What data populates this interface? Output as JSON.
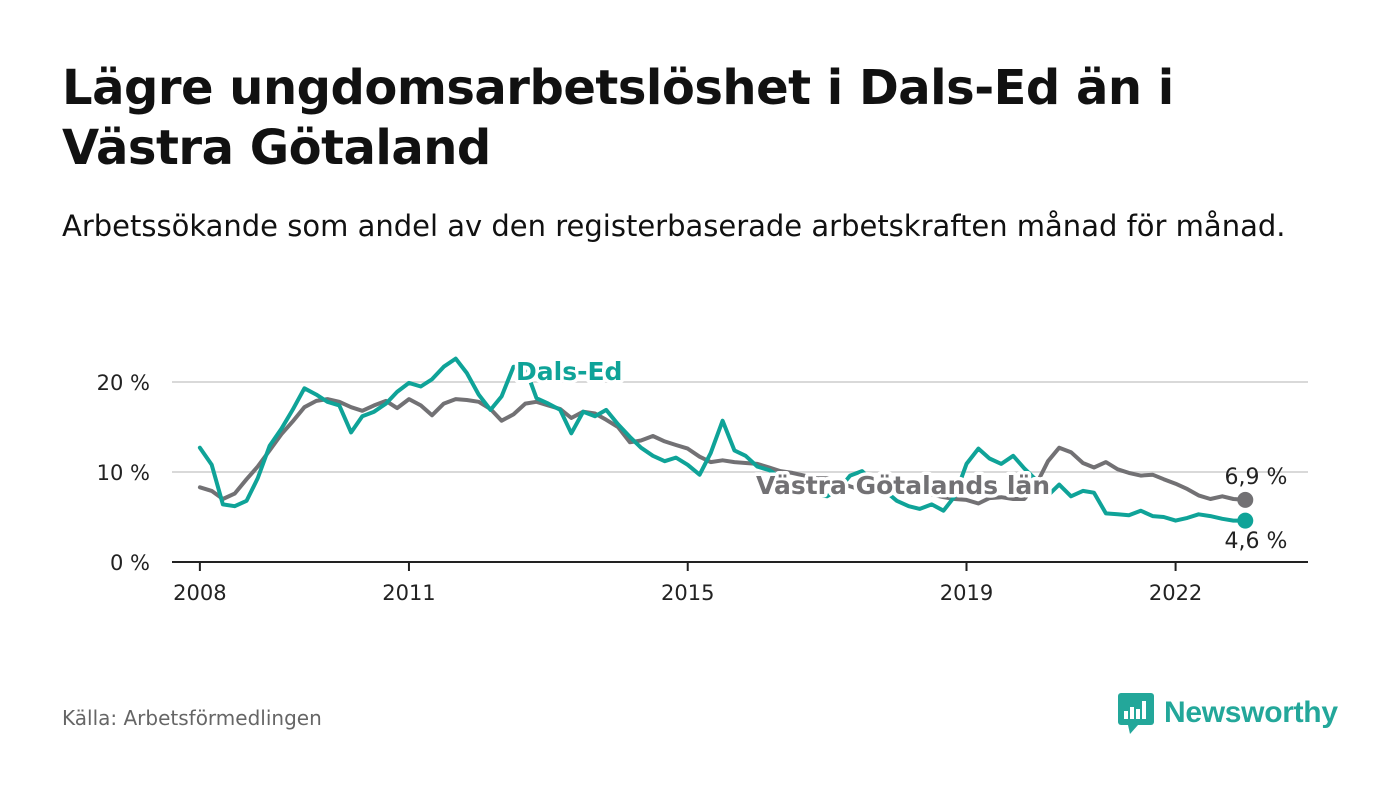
{
  "title": "Lägre ungdomsarbetslöshet i Dals-Ed än i Västra Götaland",
  "subtitle": "Arbetssökande som andel av den registerbaserade arbetskraften månad för månad.",
  "source": "Källa: Arbetsförmedlingen",
  "brand": {
    "name": "Newsworthy",
    "icon": "newsworthy-logo-icon",
    "color": "#23a79a"
  },
  "chart_data": {
    "type": "line",
    "title": "Lägre ungdomsarbetslöshet i Dals-Ed än i Västra Götaland",
    "xlabel": "",
    "ylabel": "",
    "ylim": [
      0,
      20
    ],
    "xlim": [
      2007.6,
      2023.9
    ],
    "yticks": [
      {
        "value": 0,
        "label": "0 %"
      },
      {
        "value": 10,
        "label": "10 %"
      },
      {
        "value": 20,
        "label": "20 %"
      }
    ],
    "xticks": [
      {
        "value": 2008,
        "label": "2008"
      },
      {
        "value": 2011,
        "label": "2011"
      },
      {
        "value": 2015,
        "label": "2015"
      },
      {
        "value": 2019,
        "label": "2019"
      },
      {
        "value": 2022,
        "label": "2022"
      }
    ],
    "grid": true,
    "series": [
      {
        "name": "Västra Götalands län",
        "color": "#727174",
        "end_label": "6,9 %",
        "x": [
          2008.0,
          2008.17,
          2008.33,
          2008.5,
          2008.67,
          2008.83,
          2009.0,
          2009.17,
          2009.33,
          2009.5,
          2009.67,
          2009.83,
          2010.0,
          2010.17,
          2010.33,
          2010.5,
          2010.67,
          2010.83,
          2011.0,
          2011.17,
          2011.33,
          2011.5,
          2011.67,
          2011.83,
          2012.0,
          2012.17,
          2012.33,
          2012.5,
          2012.67,
          2012.83,
          2013.0,
          2013.17,
          2013.33,
          2013.5,
          2013.67,
          2013.83,
          2014.0,
          2014.17,
          2014.33,
          2014.5,
          2014.67,
          2014.83,
          2015.0,
          2015.17,
          2015.33,
          2015.5,
          2015.67,
          2015.83,
          2016.0,
          2016.17,
          2016.33,
          2016.5,
          2016.67,
          2016.83,
          2017.0,
          2017.17,
          2017.33,
          2017.5,
          2017.67,
          2017.83,
          2018.0,
          2018.17,
          2018.33,
          2018.5,
          2018.67,
          2018.83,
          2019.0,
          2019.17,
          2019.33,
          2019.5,
          2019.67,
          2019.83,
          2020.0,
          2020.17,
          2020.33,
          2020.5,
          2020.67,
          2020.83,
          2021.0,
          2021.17,
          2021.33,
          2021.5,
          2021.67,
          2021.83,
          2022.0,
          2022.17,
          2022.33,
          2022.5,
          2022.67,
          2022.83,
          2023.0
        ],
        "values": [
          8.3,
          7.9,
          7.0,
          7.6,
          9.2,
          10.6,
          12.4,
          14.2,
          15.6,
          17.2,
          17.9,
          18.1,
          17.8,
          17.2,
          16.8,
          17.4,
          17.9,
          17.1,
          18.1,
          17.4,
          16.3,
          17.6,
          18.1,
          18.0,
          17.8,
          17.0,
          15.7,
          16.4,
          17.6,
          17.8,
          17.4,
          17.0,
          16.0,
          16.7,
          16.5,
          15.8,
          15.0,
          13.3,
          13.5,
          14.0,
          13.4,
          13.0,
          12.6,
          11.7,
          11.1,
          11.3,
          11.1,
          11.0,
          10.9,
          10.5,
          10.1,
          9.9,
          9.6,
          9.3,
          9.3,
          8.8,
          8.4,
          8.0,
          8.1,
          7.9,
          7.7,
          7.6,
          7.5,
          7.5,
          7.2,
          7.0,
          6.9,
          6.5,
          7.1,
          7.2,
          7.0,
          7.0,
          8.6,
          11.2,
          12.7,
          12.2,
          11.0,
          10.5,
          11.1,
          10.3,
          9.9,
          9.6,
          9.7,
          9.2,
          8.7,
          8.1,
          7.4,
          7.0,
          7.3,
          7.0,
          6.9
        ]
      },
      {
        "name": "Dals-Ed",
        "color": "#0fa398",
        "end_label": "4,6 %",
        "x": [
          2008.0,
          2008.17,
          2008.33,
          2008.5,
          2008.67,
          2008.83,
          2009.0,
          2009.17,
          2009.33,
          2009.5,
          2009.67,
          2009.83,
          2010.0,
          2010.17,
          2010.33,
          2010.5,
          2010.67,
          2010.83,
          2011.0,
          2011.17,
          2011.33,
          2011.5,
          2011.67,
          2011.83,
          2012.0,
          2012.17,
          2012.33,
          2012.5,
          2012.67,
          2012.83,
          2013.0,
          2013.17,
          2013.33,
          2013.5,
          2013.67,
          2013.83,
          2014.0,
          2014.17,
          2014.33,
          2014.5,
          2014.67,
          2014.83,
          2015.0,
          2015.17,
          2015.33,
          2015.5,
          2015.67,
          2015.83,
          2016.0,
          2016.17,
          2016.33,
          2016.5,
          2016.67,
          2016.83,
          2017.0,
          2017.17,
          2017.33,
          2017.5,
          2017.67,
          2017.83,
          2018.0,
          2018.17,
          2018.33,
          2018.5,
          2018.67,
          2018.83,
          2019.0,
          2019.17,
          2019.33,
          2019.5,
          2019.67,
          2019.83,
          2020.0,
          2020.17,
          2020.33,
          2020.5,
          2020.67,
          2020.83,
          2021.0,
          2021.17,
          2021.33,
          2021.5,
          2021.67,
          2021.83,
          2022.0,
          2022.17,
          2022.33,
          2022.5,
          2022.67,
          2022.83,
          2023.0
        ],
        "values": [
          12.7,
          10.8,
          6.4,
          6.2,
          6.8,
          9.3,
          12.9,
          14.8,
          16.9,
          19.3,
          18.6,
          17.8,
          17.4,
          14.4,
          16.2,
          16.7,
          17.6,
          18.9,
          19.9,
          19.5,
          20.3,
          21.7,
          22.6,
          21.0,
          18.6,
          16.9,
          18.4,
          21.7,
          21.6,
          18.2,
          17.6,
          16.9,
          14.3,
          16.7,
          16.2,
          16.9,
          15.3,
          13.9,
          12.7,
          11.8,
          11.2,
          11.6,
          10.8,
          9.7,
          12.1,
          15.7,
          12.4,
          11.8,
          10.6,
          10.2,
          9.4,
          8.7,
          7.9,
          7.5,
          7.3,
          8.1,
          9.6,
          10.1,
          8.8,
          7.9,
          6.8,
          6.2,
          5.9,
          6.4,
          5.7,
          7.3,
          10.9,
          12.6,
          11.5,
          10.9,
          11.8,
          10.4,
          9.1,
          7.4,
          8.6,
          7.3,
          7.9,
          7.7,
          5.4,
          5.3,
          5.2,
          5.7,
          5.1,
          5.0,
          4.6,
          4.9,
          5.3,
          5.1,
          4.8,
          4.6,
          4.6
        ]
      }
    ]
  }
}
